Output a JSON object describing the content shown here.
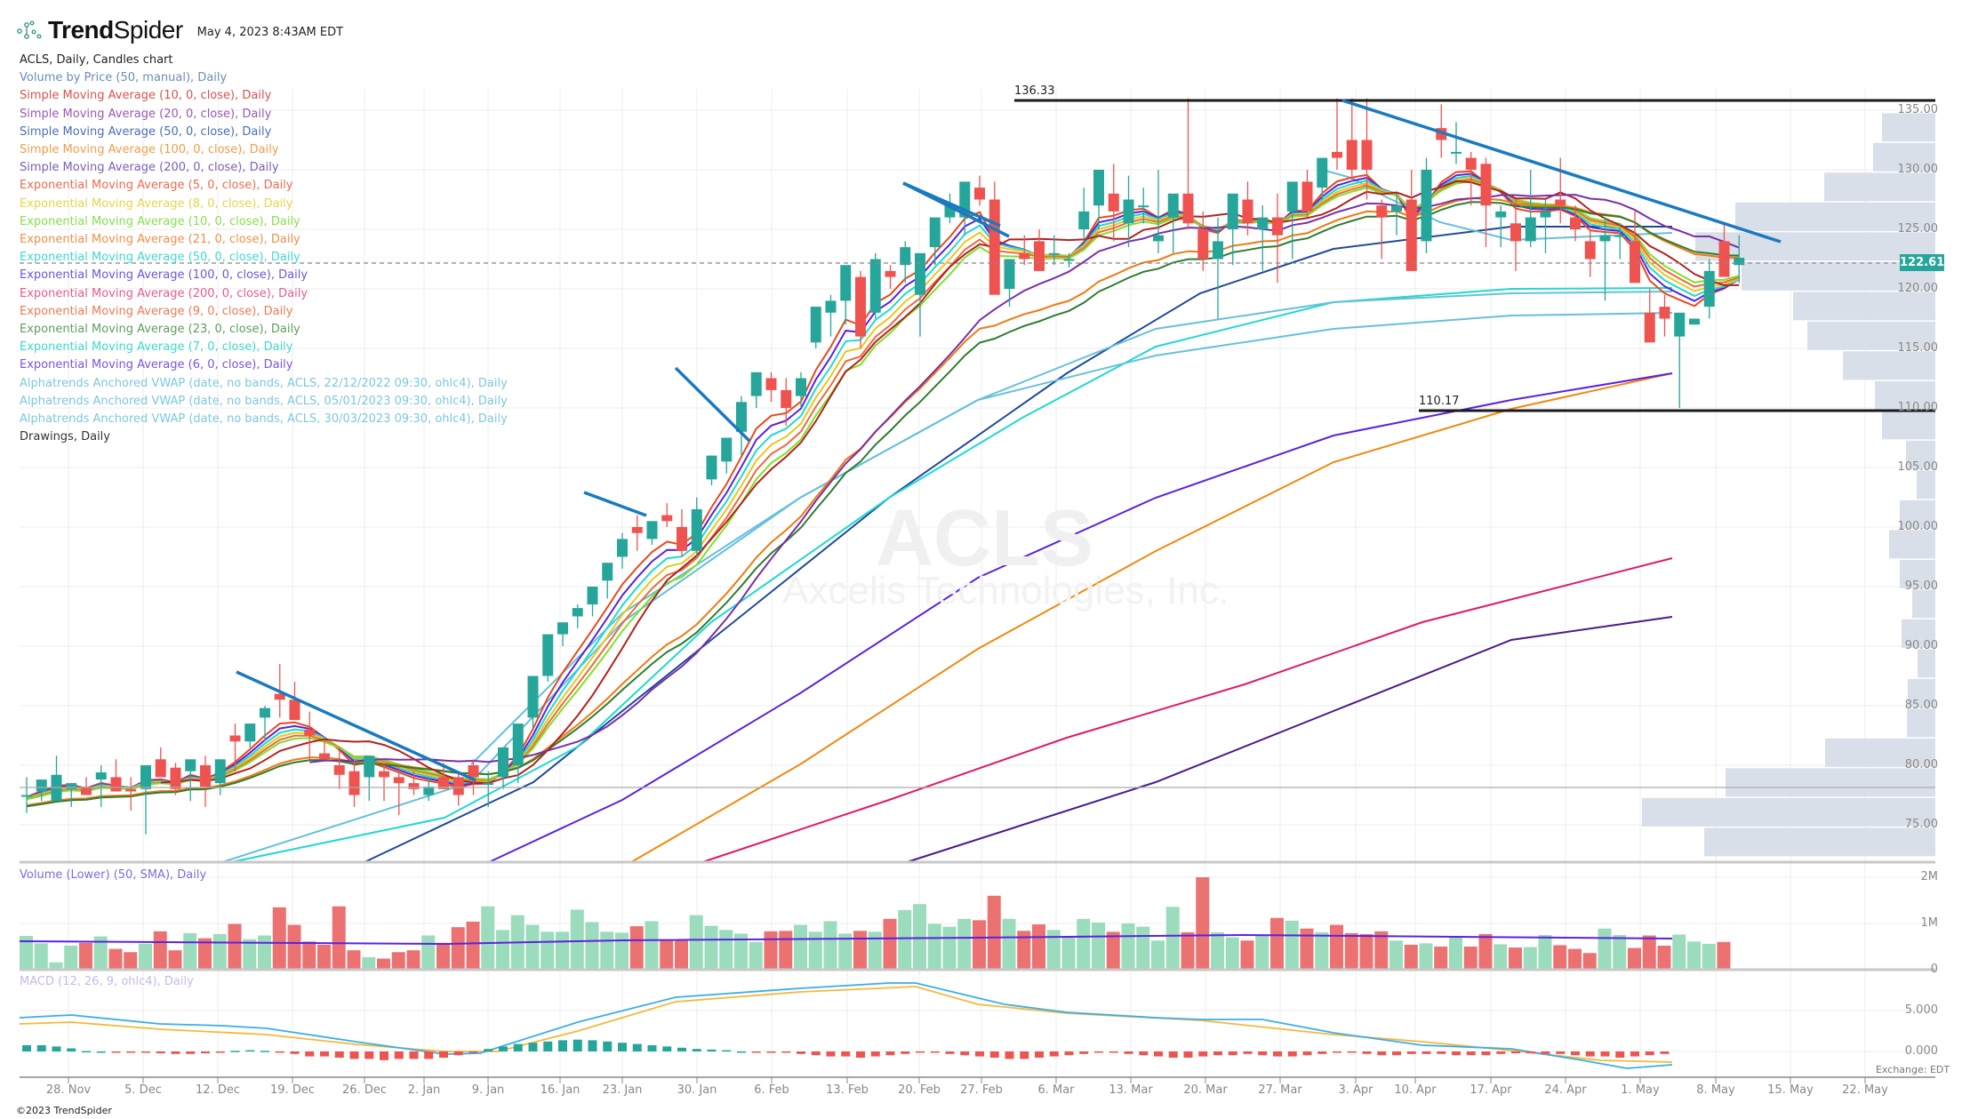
{
  "header": {
    "brand_bold": "Trend",
    "brand_light": "Spider",
    "timestamp": "May 4, 2023 8:43AM EDT"
  },
  "legend": {
    "title": "ACLS, Daily, Candles chart",
    "items": [
      {
        "label": "Volume by Price (50, manual), Daily",
        "color": "#6b8cba"
      },
      {
        "label": "Simple Moving Average (10, 0, close), Daily",
        "color": "#d9534f"
      },
      {
        "label": "Simple Moving Average (20, 0, close), Daily",
        "color": "#9b59b6"
      },
      {
        "label": "Simple Moving Average (50, 0, close), Daily",
        "color": "#4a6fb5"
      },
      {
        "label": "Simple Moving Average (100, 0, close), Daily",
        "color": "#f39c4a"
      },
      {
        "label": "Simple Moving Average (200, 0, close), Daily",
        "color": "#7d5fb8"
      },
      {
        "label": "Exponential Moving Average (5, 0, close), Daily",
        "color": "#ef6b50"
      },
      {
        "label": "Exponential Moving Average (8, 0, close), Daily",
        "color": "#e8d44a"
      },
      {
        "label": "Exponential Moving Average (10, 0, close), Daily",
        "color": "#86e04a"
      },
      {
        "label": "Exponential Moving Average (21, 0, close), Daily",
        "color": "#f0904a"
      },
      {
        "label": "Exponential Moving Average (50, 0, close), Daily",
        "color": "#3fd9cf"
      },
      {
        "label": "Exponential Moving Average (100, 0, close), Daily",
        "color": "#7055e0"
      },
      {
        "label": "Exponential Moving Average (200, 0, close), Daily",
        "color": "#e85a8f"
      },
      {
        "label": "Exponential Moving Average (9, 0, close), Daily",
        "color": "#ee7a55"
      },
      {
        "label": "Exponential Moving Average (23, 0, close), Daily",
        "color": "#5e9e5e"
      },
      {
        "label": "Exponential Moving Average (7, 0, close), Daily",
        "color": "#3fd9cf"
      },
      {
        "label": "Exponential Moving Average (6, 0, close), Daily",
        "color": "#7a55e0"
      },
      {
        "label": "Alphatrends Anchored VWAP (date, no bands, ACLS, 22/12/2022 09:30, ohlc4), Daily",
        "color": "#7cc8e0"
      },
      {
        "label": "Alphatrends Anchored VWAP (date, no bands, ACLS, 05/01/2023 09:30, ohlc4), Daily",
        "color": "#7cc8e0"
      },
      {
        "label": "Alphatrends Anchored VWAP (date, no bands, ACLS, 30/03/2023 09:30, ohlc4), Daily",
        "color": "#7cc8e0"
      },
      {
        "label": "Drawings, Daily",
        "color": "#333333"
      }
    ]
  },
  "watermark": {
    "symbol": "ACLS",
    "company": "Axcelis Technologies, Inc."
  },
  "price_axis": {
    "ticks": [
      "135.00",
      "130.00",
      "125.00",
      "120.00",
      "115.00",
      "110.00",
      "105.00",
      "100.00",
      "95.00",
      "90.00",
      "85.00",
      "80.00",
      "75.00"
    ],
    "last_price": "122.61"
  },
  "horizontal_levels": {
    "resistance": "136.33",
    "support": "110.17"
  },
  "volume_pane": {
    "label": "Volume (Lower) (50, SMA), Daily",
    "ticks": [
      "2M",
      "1M",
      "0"
    ]
  },
  "macd_pane": {
    "label": "MACD (12, 26, 9, ohlc4), Daily",
    "ticks": [
      "5.000",
      "0.000"
    ]
  },
  "x_axis": {
    "labels": [
      "28. Nov",
      "5. Dec",
      "12. Dec",
      "19. Dec",
      "26. Dec",
      "2. Jan",
      "9. Jan",
      "16. Jan",
      "23. Jan",
      "30. Jan",
      "6. Feb",
      "13. Feb",
      "20. Feb",
      "27. Feb",
      "6. Mar",
      "13. Mar",
      "20. Mar",
      "27. Mar",
      "3. Apr",
      "10. Apr",
      "17. Apr",
      "24. Apr",
      "1. May",
      "8. May",
      "15. May",
      "22. May"
    ],
    "positions": [
      77,
      161,
      245,
      329,
      410,
      477,
      549,
      630,
      700,
      784,
      868,
      953,
      1034,
      1104,
      1188,
      1272,
      1356,
      1440,
      1525,
      1592,
      1677,
      1761,
      1845,
      1930,
      2014,
      2098
    ]
  },
  "footer": {
    "copyright": "©2023 TrendSpider",
    "exchange": "Exchange: EDT"
  },
  "colors": {
    "up": "#26a69a",
    "down": "#ef5350",
    "vol_up": "#9bdcbd",
    "vol_down": "#ec7272",
    "trendline": "#1a7abf",
    "level": "#1a1a1a",
    "vbp": "#d9dfe8",
    "grid": "#ececec",
    "macd": "#3aaee8",
    "signal": "#f5b83a"
  },
  "chart_data": {
    "type": "candlestick",
    "title": "ACLS, Daily, Candles chart",
    "symbol": "ACLS",
    "date_range": [
      "2022-11-21",
      "2023-05-03"
    ],
    "ylim": [
      72,
      137
    ],
    "last_price": 122.61,
    "levels": [
      136.33,
      110.17
    ],
    "ohlc": [
      [
        77.5,
        79.0,
        76.0,
        77.5
      ],
      [
        77.8,
        78.5,
        77.0,
        78.8
      ],
      [
        77.0,
        80.8,
        77.0,
        79.2
      ],
      [
        78.0,
        78.5,
        76.5,
        78.5
      ],
      [
        78.2,
        79.0,
        77.5,
        77.5
      ],
      [
        78.8,
        80.0,
        76.5,
        79.4
      ],
      [
        79.0,
        80.5,
        78.0,
        77.8
      ],
      [
        78.0,
        79.0,
        76.2,
        77.8
      ],
      [
        78.0,
        79.8,
        74.2,
        80.0
      ],
      [
        80.5,
        81.5,
        79.5,
        79.0
      ],
      [
        79.8,
        80.2,
        77.5,
        78.0
      ],
      [
        79.5,
        80.0,
        77.0,
        80.5
      ],
      [
        80.0,
        80.8,
        76.5,
        78.2
      ],
      [
        78.5,
        80.0,
        77.5,
        80.5
      ],
      [
        82.5,
        83.5,
        79.5,
        82.0
      ],
      [
        82.0,
        83.5,
        81.5,
        83.5
      ],
      [
        84.0,
        85.0,
        82.0,
        84.8
      ],
      [
        86.0,
        88.5,
        84.0,
        85.5
      ],
      [
        85.5,
        87.0,
        85.0,
        83.8
      ],
      [
        83.0,
        84.5,
        80.5,
        82.5
      ],
      [
        81.0,
        82.0,
        80.5,
        80.5
      ],
      [
        80.0,
        81.5,
        78.0,
        79.2
      ],
      [
        79.5,
        80.5,
        76.5,
        77.5
      ],
      [
        79.0,
        80.5,
        77.0,
        80.8
      ],
      [
        79.5,
        80.2,
        77.0,
        79.0
      ],
      [
        79.0,
        80.0,
        75.8,
        78.5
      ],
      [
        78.5,
        79.5,
        77.5,
        78.0
      ],
      [
        77.5,
        79.0,
        77.0,
        78.2
      ],
      [
        79.0,
        80.2,
        78.0,
        78.0
      ],
      [
        79.0,
        79.5,
        76.6,
        77.5
      ],
      [
        80.0,
        80.5,
        77.5,
        79.0
      ],
      [
        78.5,
        79.5,
        76.5,
        78.5
      ],
      [
        79.0,
        81.5,
        78.0,
        81.5
      ],
      [
        80.0,
        83.0,
        78.5,
        83.5
      ],
      [
        84.0,
        86.0,
        83.0,
        87.5
      ],
      [
        87.5,
        89.8,
        87.0,
        91.0
      ],
      [
        91.0,
        92.0,
        90.0,
        92.0
      ],
      [
        92.5,
        93.5,
        91.5,
        93.2
      ],
      [
        93.5,
        95.0,
        92.5,
        95.0
      ],
      [
        95.5,
        97.0,
        94.0,
        97.0
      ],
      [
        97.5,
        99.5,
        96.5,
        99.0
      ],
      [
        100.0,
        101.0,
        98.0,
        99.5
      ],
      [
        99.0,
        100.0,
        98.5,
        100.5
      ],
      [
        101.0,
        102.0,
        100.0,
        100.5
      ],
      [
        100.0,
        101.5,
        97.5,
        98.0
      ],
      [
        98.0,
        102.5,
        97.5,
        101.5
      ],
      [
        104.0,
        106.0,
        103.5,
        106.0
      ],
      [
        105.5,
        107.0,
        104.5,
        107.5
      ],
      [
        108.0,
        111.0,
        106.0,
        110.5
      ],
      [
        111.0,
        113.0,
        110.0,
        113.0
      ],
      [
        112.5,
        113.0,
        110.5,
        111.5
      ],
      [
        111.5,
        112.5,
        108.5,
        110.0
      ],
      [
        111.0,
        113.0,
        110.0,
        112.5
      ],
      [
        115.5,
        118.0,
        115.0,
        118.5
      ],
      [
        118.0,
        119.5,
        116.0,
        119.0
      ],
      [
        119.0,
        121.0,
        117.0,
        122.0
      ],
      [
        121.0,
        121.5,
        115.0,
        116.0
      ],
      [
        118.0,
        123.0,
        117.5,
        122.5
      ],
      [
        121.5,
        122.0,
        120.0,
        121.0
      ],
      [
        122.0,
        124.0,
        120.5,
        123.5
      ],
      [
        119.5,
        121.0,
        116.0,
        123.0
      ],
      [
        123.5,
        125.0,
        122.0,
        126.0
      ],
      [
        126.0,
        128.0,
        125.5,
        127.0
      ],
      [
        126.0,
        128.0,
        124.5,
        129.0
      ],
      [
        128.5,
        129.5,
        127.0,
        127.5
      ],
      [
        127.5,
        129.0,
        121.0,
        119.5
      ],
      [
        120.0,
        122.0,
        118.5,
        122.5
      ],
      [
        123.0,
        124.5,
        122.0,
        122.5
      ],
      [
        124.0,
        125.0,
        121.5,
        121.5
      ],
      [
        123.0,
        124.5,
        122.0,
        123.0
      ],
      [
        122.5,
        123.0,
        121.8,
        122.5
      ],
      [
        125.0,
        128.5,
        124.0,
        126.5
      ],
      [
        127.0,
        129.0,
        125.0,
        130.0
      ],
      [
        128.0,
        130.5,
        124.0,
        126.5
      ],
      [
        125.5,
        129.5,
        123.5,
        127.5
      ],
      [
        127.0,
        128.5,
        125.5,
        127.0
      ],
      [
        124.0,
        130.0,
        123.0,
        124.5
      ],
      [
        126.0,
        127.0,
        123.0,
        128.0
      ],
      [
        128.0,
        136.0,
        125.0,
        125.5
      ],
      [
        125.0,
        126.5,
        121.5,
        122.5
      ],
      [
        122.5,
        126.0,
        117.5,
        124.0
      ],
      [
        125.0,
        127.5,
        122.0,
        128.0
      ],
      [
        127.5,
        129.0,
        124.5,
        125.5
      ],
      [
        125.0,
        127.0,
        121.5,
        126.0
      ],
      [
        126.0,
        128.0,
        120.5,
        124.5
      ],
      [
        126.5,
        128.5,
        122.5,
        129.0
      ],
      [
        129.0,
        130.0,
        126.0,
        126.5
      ],
      [
        128.5,
        130.5,
        127.5,
        131.0
      ],
      [
        131.5,
        136.0,
        130.0,
        131.0
      ],
      [
        132.5,
        136.0,
        129.0,
        130.0
      ],
      [
        132.5,
        136.0,
        127.5,
        130.0
      ],
      [
        127.0,
        127.5,
        122.5,
        126.0
      ],
      [
        126.5,
        128.0,
        124.5,
        127.0
      ],
      [
        127.5,
        130.0,
        122.0,
        121.5
      ],
      [
        124.0,
        131.0,
        123.0,
        130.0
      ],
      [
        133.5,
        135.5,
        131.0,
        132.5
      ],
      [
        131.5,
        134.0,
        130.5,
        131.5
      ],
      [
        131.0,
        131.5,
        127.0,
        130.0
      ],
      [
        130.5,
        131.0,
        123.5,
        127.0
      ],
      [
        126.0,
        127.0,
        123.5,
        126.5
      ],
      [
        125.5,
        127.5,
        121.5,
        124.0
      ],
      [
        124.0,
        130.0,
        123.5,
        126.0
      ],
      [
        126.0,
        127.5,
        123.0,
        126.5
      ],
      [
        127.5,
        131.0,
        125.5,
        127.0
      ],
      [
        126.0,
        127.0,
        124.0,
        125.0
      ],
      [
        124.0,
        125.0,
        121.0,
        122.5
      ],
      [
        124.0,
        126.0,
        119.0,
        124.5
      ],
      [
        124.5,
        125.5,
        122.5,
        124.5
      ],
      [
        124.0,
        126.5,
        121.5,
        120.5
      ],
      [
        118.0,
        120.0,
        117.5,
        115.5
      ],
      [
        118.5,
        119.5,
        116.0,
        117.5
      ],
      [
        116.0,
        117.5,
        110.0,
        118.0
      ],
      [
        117.0,
        117.5,
        117.0,
        117.5
      ],
      [
        118.5,
        122.5,
        117.5,
        121.5
      ],
      [
        124.0,
        125.5,
        121.0,
        121.0
      ],
      [
        122.0,
        124.5,
        120.5,
        122.61
      ]
    ],
    "volume_series": "Volume (Lower) (50, SMA)",
    "volume_ylim": [
      0,
      2000000
    ],
    "macd_series": "MACD (12, 26, 9, ohlc4)",
    "macd_ticks": [
      0,
      5
    ]
  }
}
